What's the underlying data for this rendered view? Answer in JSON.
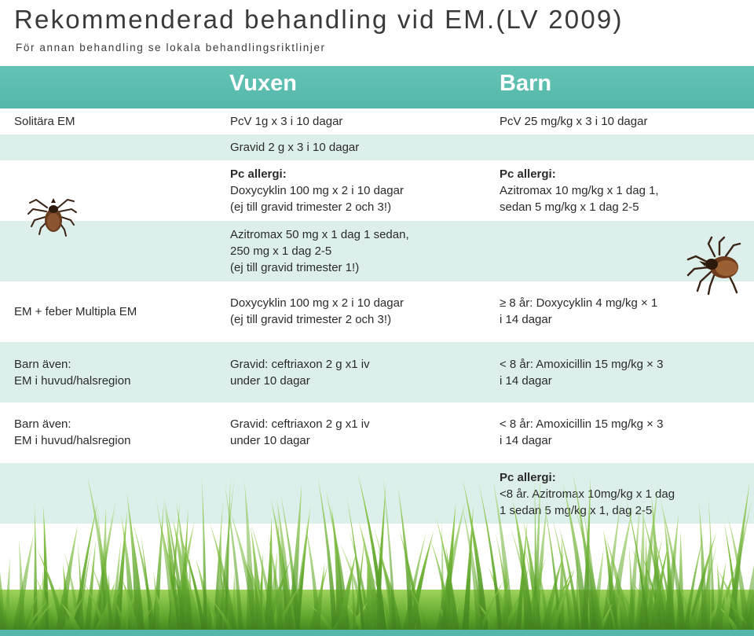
{
  "title": "Rekommenderad behandling vid EM.(LV 2009)",
  "subtitle": "För annan behandling se lokala behandlingsriktlinjer",
  "columns": {
    "adult": "Vuxen",
    "child": "Barn"
  },
  "colors": {
    "header": "#5bbdb0",
    "tint": "#dcefeb",
    "grass": "#6fb23a"
  },
  "icons": {
    "tick": "tick-illustration",
    "grass": "grass-illustration"
  },
  "rows": [
    {
      "label": [
        "Solitära EM"
      ],
      "adult": [
        "PcV 1g x 3 i 10 dagar"
      ],
      "child": [
        "PcV 25 mg/kg x 3 i 10 dagar"
      ]
    },
    {
      "label": [],
      "adult": [
        "Gravid 2 g x 3 i 10 dagar"
      ],
      "child": []
    },
    {
      "label": [],
      "adult_heading": "Pc allergi:",
      "adult": [
        "Doxycyklin 100 mg x 2 i 10 dagar",
        "(ej till gravid trimester 2 och 3!)"
      ],
      "child_heading": "Pc allergi:",
      "child": [
        "Azitromax 10 mg/kg x 1 dag 1,",
        "sedan 5 mg/kg x 1 dag  2-5"
      ]
    },
    {
      "label": [],
      "adult": [
        "Azitromax 50 mg x 1 dag 1 sedan,",
        "250 mg x 1 dag 2-5",
        "(ej till gravid  trimester 1!)"
      ],
      "child": []
    },
    {
      "label": [
        "EM + feber Multipla EM"
      ],
      "adult": [
        "Doxycyklin 100 mg x 2 i 10 dagar",
        "(ej till gravid trimester 2 och 3!)"
      ],
      "child": [
        "≥ 8 år: Doxycyklin 4 mg/kg × 1",
        "i 14 dagar"
      ]
    },
    {
      "label": [
        "Barn även:",
        "EM i huvud/halsregion"
      ],
      "adult": [
        "Gravid: ceftriaxon 2 g x1 iv",
        "under 10 dagar"
      ],
      "child": [
        "< 8 år: Amoxicillin 15 mg/kg × 3",
        "i 14 dagar"
      ]
    },
    {
      "label": [
        "Barn även:",
        "EM i huvud/halsregion"
      ],
      "adult": [
        "Gravid: ceftriaxon 2 g x1 iv",
        "under 10 dagar"
      ],
      "child": [
        "< 8 år: Amoxicillin 15 mg/kg × 3",
        "i 14 dagar"
      ]
    },
    {
      "label": [],
      "adult": [],
      "child_heading": "Pc allergi:",
      "child": [
        "<8 år. Azitromax 10mg/kg x 1 dag",
        "1 sedan 5 mg/kg x 1, dag 2-5"
      ]
    }
  ]
}
